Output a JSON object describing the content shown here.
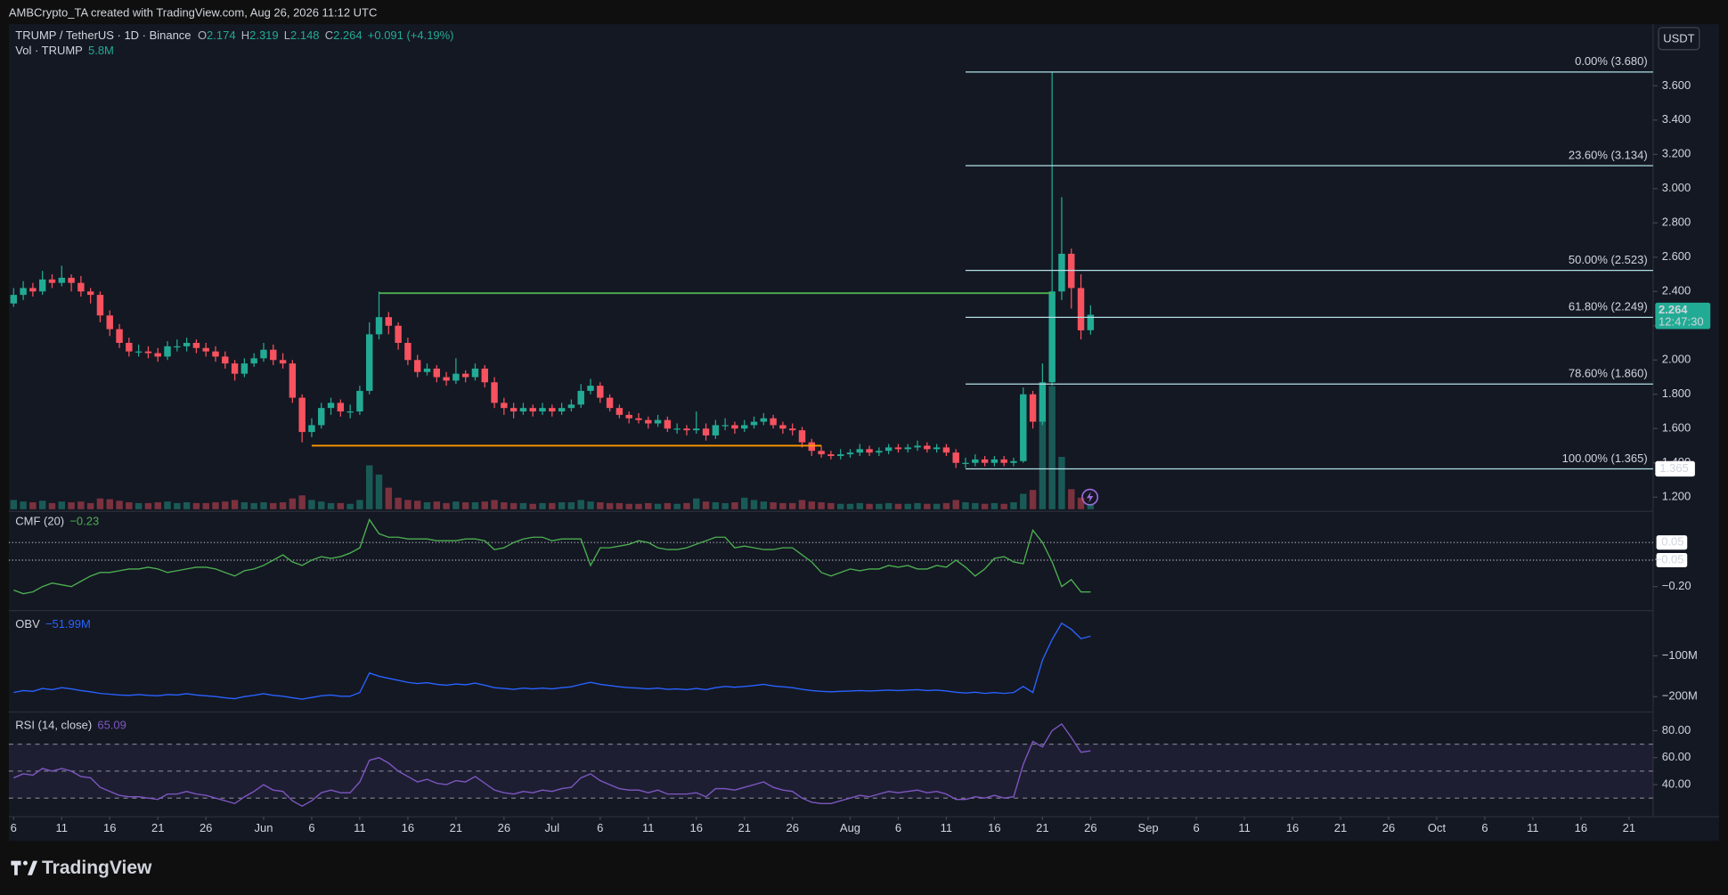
{
  "watermark": "AMBCrypto_TA created with TradingView.com, Aug 26, 2026 11:12 UTC",
  "brand": "TradingView",
  "currency": "USDT",
  "chart_data": {
    "type": "candlestick",
    "symbol": "TRUMP / TetherUS · 1D · Binance",
    "ohlc": [
      {
        "key": "O",
        "value": 2.174
      },
      {
        "key": "H",
        "value": 2.319
      },
      {
        "key": "L",
        "value": 2.148
      },
      {
        "key": "C",
        "value": 2.264
      }
    ],
    "change": "+0.091 (+4.19%)",
    "volume_title": "Vol · TRUMP",
    "volume_last": "5.8M",
    "vol_legend_key": "Vol",
    "up_color": "#22ab94",
    "down_color": "#f7525f",
    "xlim": [
      -0.5,
      170.5
    ],
    "xticks": [
      {
        "value": 0,
        "label": "6"
      },
      {
        "value": 5,
        "label": "11"
      },
      {
        "value": 10,
        "label": "16"
      },
      {
        "value": 15,
        "label": "21"
      },
      {
        "value": 20,
        "label": "26"
      },
      {
        "value": 26,
        "label": "Jun"
      },
      {
        "value": 31,
        "label": "6"
      },
      {
        "value": 36,
        "label": "11"
      },
      {
        "value": 41,
        "label": "16"
      },
      {
        "value": 46,
        "label": "21"
      },
      {
        "value": 51,
        "label": "26"
      },
      {
        "value": 56,
        "label": "Jul"
      },
      {
        "value": 61,
        "label": "6"
      },
      {
        "value": 66,
        "label": "11"
      },
      {
        "value": 71,
        "label": "16"
      },
      {
        "value": 76,
        "label": "21"
      },
      {
        "value": 81,
        "label": "26"
      },
      {
        "value": 87,
        "label": "Aug"
      },
      {
        "value": 92,
        "label": "6"
      },
      {
        "value": 97,
        "label": "11"
      },
      {
        "value": 102,
        "label": "16"
      },
      {
        "value": 107,
        "label": "21"
      },
      {
        "value": 112,
        "label": "26"
      },
      {
        "value": 118,
        "label": "Sep"
      },
      {
        "value": 123,
        "label": "6"
      },
      {
        "value": 128,
        "label": "11"
      },
      {
        "value": 133,
        "label": "16"
      },
      {
        "value": 138,
        "label": "21"
      },
      {
        "value": 143,
        "label": "26"
      },
      {
        "value": 148,
        "label": "Oct"
      },
      {
        "value": 153,
        "label": "6"
      },
      {
        "value": 158,
        "label": "11"
      },
      {
        "value": 163,
        "label": "16"
      },
      {
        "value": 168,
        "label": "21"
      }
    ],
    "ylim": [
      1.123,
      3.959
    ],
    "yticks": [
      {
        "value": 1.2,
        "label": "1.200"
      },
      {
        "value": 1.4,
        "label": "1.400"
      },
      {
        "value": 1.6,
        "label": "1.600"
      },
      {
        "value": 1.8,
        "label": "1.800"
      },
      {
        "value": 2.0,
        "label": "2.000"
      },
      {
        "value": 2.2,
        "label": "2.200"
      },
      {
        "value": 2.4,
        "label": "2.400"
      },
      {
        "value": 2.6,
        "label": "2.600"
      },
      {
        "value": 2.8,
        "label": "2.800"
      },
      {
        "value": 3.0,
        "label": "3.000"
      },
      {
        "value": 3.2,
        "label": "3.200"
      },
      {
        "value": 3.4,
        "label": "3.400"
      },
      {
        "value": 3.6,
        "label": "3.600"
      }
    ],
    "grid": false,
    "candles": [
      [
        2.33,
        2.42,
        2.31,
        2.38
      ],
      [
        2.38,
        2.46,
        2.35,
        2.42
      ],
      [
        2.42,
        2.45,
        2.37,
        2.4
      ],
      [
        2.4,
        2.52,
        2.38,
        2.47
      ],
      [
        2.47,
        2.5,
        2.42,
        2.45
      ],
      [
        2.45,
        2.55,
        2.43,
        2.48
      ],
      [
        2.48,
        2.5,
        2.4,
        2.45
      ],
      [
        2.45,
        2.49,
        2.37,
        2.4
      ],
      [
        2.4,
        2.42,
        2.33,
        2.38
      ],
      [
        2.38,
        2.4,
        2.22,
        2.26
      ],
      [
        2.26,
        2.29,
        2.14,
        2.18
      ],
      [
        2.18,
        2.21,
        2.07,
        2.1
      ],
      [
        2.1,
        2.13,
        2.02,
        2.05
      ],
      [
        2.05,
        2.09,
        2.02,
        2.05
      ],
      [
        2.05,
        2.08,
        2.01,
        2.04
      ],
      [
        2.04,
        2.07,
        1.99,
        2.02
      ],
      [
        2.02,
        2.11,
        2.0,
        2.08
      ],
      [
        2.08,
        2.12,
        2.05,
        2.08
      ],
      [
        2.08,
        2.13,
        2.05,
        2.1
      ],
      [
        2.1,
        2.12,
        2.04,
        2.07
      ],
      [
        2.07,
        2.1,
        2.02,
        2.05
      ],
      [
        2.05,
        2.08,
        1.99,
        2.02
      ],
      [
        2.02,
        2.05,
        1.95,
        1.98
      ],
      [
        1.98,
        2.0,
        1.88,
        1.92
      ],
      [
        1.92,
        2.01,
        1.9,
        1.98
      ],
      [
        1.98,
        2.04,
        1.96,
        2.01
      ],
      [
        2.01,
        2.1,
        1.99,
        2.06
      ],
      [
        2.06,
        2.09,
        1.97,
        2.0
      ],
      [
        2.0,
        2.04,
        1.95,
        1.98
      ],
      [
        1.98,
        2.0,
        1.75,
        1.78
      ],
      [
        1.78,
        1.8,
        1.52,
        1.58
      ],
      [
        1.58,
        1.66,
        1.55,
        1.62
      ],
      [
        1.62,
        1.75,
        1.6,
        1.72
      ],
      [
        1.72,
        1.78,
        1.68,
        1.75
      ],
      [
        1.75,
        1.77,
        1.67,
        1.7
      ],
      [
        1.7,
        1.74,
        1.66,
        1.7
      ],
      [
        1.7,
        1.85,
        1.68,
        1.82
      ],
      [
        1.82,
        2.22,
        1.8,
        2.15
      ],
      [
        2.15,
        2.4,
        2.12,
        2.25
      ],
      [
        2.25,
        2.28,
        2.15,
        2.2
      ],
      [
        2.2,
        2.22,
        2.06,
        2.1
      ],
      [
        2.1,
        2.13,
        1.97,
        2.0
      ],
      [
        2.0,
        2.03,
        1.9,
        1.93
      ],
      [
        1.93,
        1.98,
        1.91,
        1.95
      ],
      [
        1.95,
        1.97,
        1.87,
        1.9
      ],
      [
        1.9,
        1.93,
        1.85,
        1.88
      ],
      [
        1.88,
        2.01,
        1.86,
        1.92
      ],
      [
        1.92,
        1.94,
        1.87,
        1.9
      ],
      [
        1.9,
        1.98,
        1.88,
        1.95
      ],
      [
        1.95,
        1.97,
        1.84,
        1.87
      ],
      [
        1.87,
        1.9,
        1.72,
        1.75
      ],
      [
        1.75,
        1.78,
        1.68,
        1.72
      ],
      [
        1.72,
        1.75,
        1.66,
        1.7
      ],
      [
        1.7,
        1.75,
        1.68,
        1.72
      ],
      [
        1.72,
        1.74,
        1.67,
        1.7
      ],
      [
        1.7,
        1.75,
        1.68,
        1.72
      ],
      [
        1.72,
        1.74,
        1.67,
        1.7
      ],
      [
        1.7,
        1.75,
        1.68,
        1.72
      ],
      [
        1.72,
        1.77,
        1.7,
        1.74
      ],
      [
        1.74,
        1.86,
        1.72,
        1.82
      ],
      [
        1.82,
        1.89,
        1.8,
        1.85
      ],
      [
        1.85,
        1.87,
        1.75,
        1.78
      ],
      [
        1.78,
        1.8,
        1.7,
        1.72
      ],
      [
        1.72,
        1.74,
        1.66,
        1.68
      ],
      [
        1.68,
        1.7,
        1.63,
        1.66
      ],
      [
        1.66,
        1.69,
        1.63,
        1.65
      ],
      [
        1.65,
        1.67,
        1.6,
        1.63
      ],
      [
        1.63,
        1.68,
        1.61,
        1.65
      ],
      [
        1.65,
        1.67,
        1.58,
        1.6
      ],
      [
        1.6,
        1.63,
        1.57,
        1.6
      ],
      [
        1.6,
        1.62,
        1.56,
        1.59
      ],
      [
        1.59,
        1.7,
        1.57,
        1.6
      ],
      [
        1.6,
        1.63,
        1.53,
        1.56
      ],
      [
        1.56,
        1.65,
        1.54,
        1.62
      ],
      [
        1.62,
        1.66,
        1.59,
        1.62
      ],
      [
        1.62,
        1.64,
        1.57,
        1.6
      ],
      [
        1.6,
        1.65,
        1.58,
        1.62
      ],
      [
        1.62,
        1.67,
        1.6,
        1.64
      ],
      [
        1.64,
        1.69,
        1.62,
        1.66
      ],
      [
        1.66,
        1.68,
        1.6,
        1.62
      ],
      [
        1.62,
        1.64,
        1.57,
        1.6
      ],
      [
        1.6,
        1.63,
        1.56,
        1.59
      ],
      [
        1.59,
        1.61,
        1.49,
        1.52
      ],
      [
        1.52,
        1.54,
        1.44,
        1.47
      ],
      [
        1.47,
        1.5,
        1.43,
        1.45
      ],
      [
        1.45,
        1.47,
        1.42,
        1.44
      ],
      [
        1.44,
        1.48,
        1.42,
        1.45
      ],
      [
        1.45,
        1.48,
        1.43,
        1.46
      ],
      [
        1.46,
        1.51,
        1.44,
        1.48
      ],
      [
        1.48,
        1.5,
        1.44,
        1.46
      ],
      [
        1.46,
        1.49,
        1.44,
        1.47
      ],
      [
        1.47,
        1.51,
        1.45,
        1.49
      ],
      [
        1.49,
        1.51,
        1.46,
        1.48
      ],
      [
        1.48,
        1.51,
        1.46,
        1.49
      ],
      [
        1.49,
        1.53,
        1.47,
        1.5
      ],
      [
        1.5,
        1.52,
        1.46,
        1.48
      ],
      [
        1.48,
        1.51,
        1.46,
        1.49
      ],
      [
        1.49,
        1.51,
        1.44,
        1.46
      ],
      [
        1.46,
        1.48,
        1.37,
        1.4
      ],
      [
        1.4,
        1.43,
        1.37,
        1.4
      ],
      [
        1.4,
        1.45,
        1.38,
        1.42
      ],
      [
        1.42,
        1.44,
        1.38,
        1.4
      ],
      [
        1.4,
        1.44,
        1.38,
        1.42
      ],
      [
        1.42,
        1.44,
        1.38,
        1.4
      ],
      [
        1.4,
        1.43,
        1.38,
        1.41
      ],
      [
        1.41,
        1.84,
        1.4,
        1.8
      ],
      [
        1.8,
        1.82,
        1.6,
        1.64
      ],
      [
        1.64,
        1.98,
        1.62,
        1.87
      ],
      [
        1.87,
        3.68,
        1.85,
        2.4
      ],
      [
        2.4,
        2.95,
        2.35,
        2.62
      ],
      [
        2.62,
        2.65,
        2.3,
        2.42
      ],
      [
        2.42,
        2.5,
        2.12,
        2.173
      ],
      [
        2.174,
        2.319,
        2.148,
        2.264
      ]
    ],
    "volume_ylim": [
      0,
      630
    ],
    "volume": [
      12,
      10,
      9,
      11,
      8,
      10,
      9,
      10,
      8,
      14,
      13,
      11,
      9,
      8,
      8,
      9,
      10,
      8,
      9,
      8,
      8,
      9,
      10,
      12,
      9,
      8,
      9,
      8,
      9,
      14,
      18,
      12,
      10,
      8,
      8,
      7,
      12,
      57,
      45,
      28,
      15,
      12,
      11,
      9,
      10,
      8,
      10,
      9,
      9,
      10,
      12,
      9,
      8,
      8,
      7,
      8,
      8,
      9,
      9,
      12,
      10,
      9,
      8,
      8,
      7,
      7,
      8,
      7,
      8,
      7,
      8,
      14,
      10,
      9,
      8,
      9,
      15,
      12,
      10,
      9,
      8,
      8,
      12,
      10,
      9,
      8,
      7,
      7,
      8,
      7,
      7,
      8,
      7,
      7,
      8,
      7,
      7,
      8,
      12,
      9,
      8,
      7,
      8,
      7,
      9,
      20,
      25,
      140,
      160,
      68,
      26,
      15,
      5.8
    ],
    "fib_start": 99,
    "fib_color": "#b2dfe8",
    "fib": [
      {
        "value": 3.68,
        "label": "0.00% (3.680)"
      },
      {
        "value": 3.134,
        "label": "23.60% (3.134)"
      },
      {
        "value": 2.523,
        "label": "50.00% (2.523)"
      },
      {
        "value": 2.249,
        "label": "61.80% (2.249)"
      },
      {
        "value": 1.86,
        "label": "78.60% (1.860)"
      },
      {
        "value": 1.365,
        "label": "100.00% (1.365)"
      }
    ],
    "levels": [
      {
        "value": 2.39,
        "start": 38,
        "end": 108,
        "color": "#4caf50"
      },
      {
        "value": 1.5,
        "start": 31,
        "end": 84,
        "color": "#ff9800"
      }
    ],
    "last_price": 2.264,
    "countdown": "12:47:30",
    "marker_price": 1.365,
    "cmf": {
      "title": "CMF (20)",
      "last": "−0.23",
      "color": "#4caf50",
      "ylim": [
        -0.33,
        0.22
      ],
      "yticks": [
        {
          "value": -0.2,
          "label": "−0.20"
        }
      ],
      "levels": [
        {
          "value": 0.05,
          "label": "0.05"
        },
        {
          "value": -0.05,
          "label": "−0.05"
        }
      ],
      "values": [
        -0.22,
        -0.24,
        -0.23,
        -0.2,
        -0.18,
        -0.19,
        -0.2,
        -0.17,
        -0.14,
        -0.12,
        -0.12,
        -0.11,
        -0.1,
        -0.1,
        -0.09,
        -0.1,
        -0.12,
        -0.11,
        -0.1,
        -0.09,
        -0.09,
        -0.1,
        -0.12,
        -0.14,
        -0.11,
        -0.1,
        -0.08,
        -0.05,
        -0.02,
        -0.06,
        -0.08,
        -0.05,
        -0.03,
        -0.04,
        -0.03,
        -0.01,
        0.02,
        0.18,
        0.1,
        0.08,
        0.08,
        0.07,
        0.07,
        0.07,
        0.06,
        0.06,
        0.06,
        0.07,
        0.07,
        0.06,
        0.01,
        0.02,
        0.05,
        0.07,
        0.08,
        0.08,
        0.06,
        0.07,
        0.07,
        0.07,
        -0.08,
        0.02,
        0.02,
        0.03,
        0.04,
        0.06,
        0.05,
        0.02,
        0.01,
        0.01,
        0.02,
        0.04,
        0.06,
        0.08,
        0.08,
        0.02,
        0.03,
        0.02,
        0.01,
        0.01,
        0.02,
        0.02,
        -0.02,
        -0.06,
        -0.12,
        -0.14,
        -0.12,
        -0.1,
        -0.11,
        -0.1,
        -0.1,
        -0.08,
        -0.09,
        -0.08,
        -0.1,
        -0.1,
        -0.08,
        -0.09,
        -0.05,
        -0.09,
        -0.14,
        -0.1,
        -0.04,
        -0.03,
        -0.06,
        -0.07,
        0.12,
        0.05,
        -0.06,
        -0.2,
        -0.16,
        -0.23,
        -0.23
      ]
    },
    "obv": {
      "title": "OBV",
      "last": "−51.99M",
      "color": "#2962ff",
      "ylim": [
        -235,
        8
      ],
      "yticks": [
        {
          "value": -100,
          "label": "−100M"
        },
        {
          "value": -200,
          "label": "−200M"
        }
      ],
      "values": [
        -190,
        -185,
        -187,
        -180,
        -183,
        -178,
        -181,
        -185,
        -188,
        -192,
        -194,
        -196,
        -197,
        -195,
        -197,
        -198,
        -195,
        -196,
        -193,
        -196,
        -198,
        -200,
        -203,
        -205,
        -200,
        -197,
        -193,
        -197,
        -199,
        -203,
        -206,
        -202,
        -198,
        -196,
        -199,
        -199,
        -190,
        -142,
        -150,
        -155,
        -160,
        -165,
        -168,
        -166,
        -170,
        -172,
        -169,
        -171,
        -167,
        -172,
        -178,
        -180,
        -182,
        -179,
        -181,
        -179,
        -181,
        -178,
        -176,
        -170,
        -165,
        -170,
        -173,
        -176,
        -178,
        -179,
        -181,
        -179,
        -182,
        -181,
        -183,
        -180,
        -183,
        -178,
        -175,
        -177,
        -175,
        -173,
        -170,
        -174,
        -176,
        -178,
        -182,
        -185,
        -187,
        -188,
        -187,
        -186,
        -185,
        -186,
        -185,
        -184,
        -185,
        -184,
        -183,
        -185,
        -184,
        -186,
        -189,
        -191,
        -189,
        -192,
        -190,
        -192,
        -190,
        -175,
        -190,
        -110,
        -60,
        -20,
        -35,
        -58,
        -51.99
      ]
    },
    "rsi": {
      "title": "RSI (14, close)",
      "last": "65.09",
      "color": "#7e57c2",
      "ylim": [
        17,
        93
      ],
      "yticks": [
        {
          "value": 80,
          "label": "80.00"
        },
        {
          "value": 60,
          "label": "60.00"
        },
        {
          "value": 40,
          "label": "40.00"
        }
      ],
      "bands": [
        70,
        50,
        30
      ],
      "values": [
        45,
        48,
        47,
        52,
        50,
        52,
        50,
        46,
        45,
        38,
        35,
        32,
        31,
        31,
        30,
        29,
        33,
        33,
        35,
        33,
        32,
        30,
        28,
        26,
        31,
        35,
        40,
        36,
        35,
        28,
        24,
        28,
        34,
        36,
        34,
        34,
        42,
        58,
        60,
        56,
        50,
        46,
        42,
        44,
        41,
        40,
        43,
        42,
        46,
        41,
        36,
        34,
        33,
        35,
        34,
        36,
        35,
        37,
        38,
        45,
        48,
        43,
        40,
        37,
        36,
        36,
        34,
        36,
        33,
        33,
        33,
        34,
        31,
        37,
        37,
        36,
        38,
        40,
        42,
        38,
        36,
        35,
        30,
        27,
        26,
        26,
        28,
        30,
        32,
        31,
        33,
        35,
        34,
        35,
        36,
        34,
        35,
        33,
        29,
        29,
        31,
        30,
        32,
        30,
        31,
        55,
        72,
        68,
        80,
        85,
        75,
        64,
        65.09
      ]
    }
  }
}
